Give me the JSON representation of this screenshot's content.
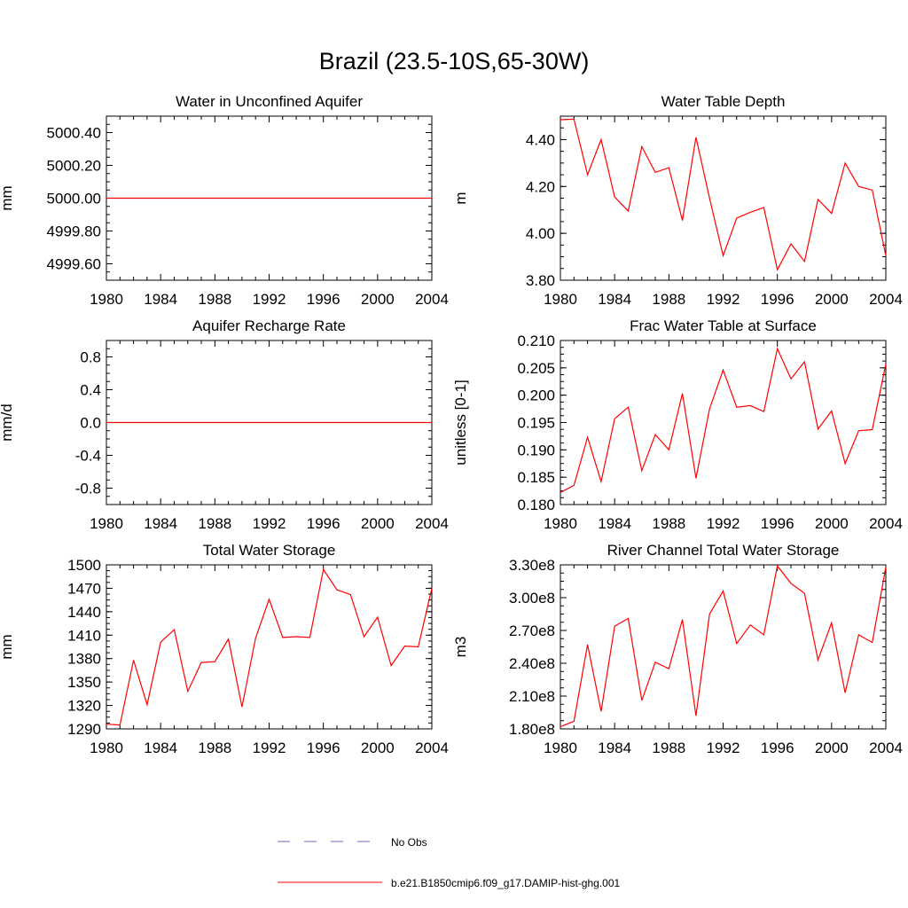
{
  "figure": {
    "title": "Brazil (23.5-10S,65-30W)",
    "line_color": "#ff0000",
    "obs_color": "#6a6ab0"
  },
  "legend": {
    "placement": "bottom-center",
    "items": [
      {
        "label": "No Obs",
        "style": "dashed",
        "color": "#6a6ab0"
      },
      {
        "label": "b.e21.B1850cmip6.f09_g17.DAMIP-hist-ghg.001",
        "style": "solid",
        "color": "#ff0000"
      }
    ]
  },
  "chart_data": [
    {
      "type": "line",
      "title": "Water in Unconfined Aquifer",
      "ylabel": "mm",
      "xlabel": "",
      "xlim": [
        1980,
        2004
      ],
      "ylim": [
        4999.5,
        5000.5
      ],
      "xticks": [
        1980,
        1984,
        1988,
        1992,
        1996,
        2000,
        2004
      ],
      "yticks": [
        4999.6,
        4999.8,
        5000.0,
        5000.2,
        5000.4
      ],
      "ytick_labels": [
        "4999.60",
        "4999.80",
        "5000.00",
        "5000.20",
        "5000.40"
      ],
      "x": [
        1980,
        1981,
        1982,
        1983,
        1984,
        1985,
        1986,
        1987,
        1988,
        1989,
        1990,
        1991,
        1992,
        1993,
        1994,
        1995,
        1996,
        1997,
        1998,
        1999,
        2000,
        2001,
        2002,
        2003,
        2004
      ],
      "series": [
        {
          "values": [
            5000,
            5000,
            5000,
            5000,
            5000,
            5000,
            5000,
            5000,
            5000,
            5000,
            5000,
            5000,
            5000,
            5000,
            5000,
            5000,
            5000,
            5000,
            5000,
            5000,
            5000,
            5000,
            5000,
            5000,
            5000
          ]
        }
      ]
    },
    {
      "type": "line",
      "title": "Water Table Depth",
      "ylabel": "m",
      "xlabel": "",
      "xlim": [
        1980,
        2004
      ],
      "ylim": [
        3.8,
        4.5
      ],
      "xticks": [
        1980,
        1984,
        1988,
        1992,
        1996,
        2000,
        2004
      ],
      "yticks": [
        3.8,
        4.0,
        4.2,
        4.4
      ],
      "ytick_labels": [
        "3.80",
        "4.00",
        "4.20",
        "4.40"
      ],
      "x": [
        1980,
        1981,
        1982,
        1983,
        1984,
        1985,
        1986,
        1987,
        1988,
        1989,
        1990,
        1991,
        1992,
        1993,
        1994,
        1995,
        1996,
        1997,
        1998,
        1999,
        2000,
        2001,
        2002,
        2003,
        2004
      ],
      "series": [
        {
          "values": [
            4.485,
            4.487,
            4.25,
            4.4,
            4.155,
            4.095,
            4.37,
            4.26,
            4.28,
            4.055,
            4.41,
            4.15,
            3.905,
            4.065,
            4.09,
            4.11,
            3.845,
            3.955,
            3.88,
            4.145,
            4.085,
            4.3,
            4.2,
            4.185,
            3.905
          ]
        }
      ]
    },
    {
      "type": "line",
      "title": "Aquifer Recharge Rate",
      "ylabel": "mm/d",
      "xlabel": "",
      "xlim": [
        1980,
        2004
      ],
      "ylim": [
        -1,
        1
      ],
      "xticks": [
        1980,
        1984,
        1988,
        1992,
        1996,
        2000,
        2004
      ],
      "yticks": [
        -0.8,
        -0.4,
        0.0,
        0.4,
        0.8
      ],
      "ytick_labels": [
        "-0.8",
        "-0.4",
        "0.0",
        "0.4",
        "0.8"
      ],
      "x": [
        1980,
        1981,
        1982,
        1983,
        1984,
        1985,
        1986,
        1987,
        1988,
        1989,
        1990,
        1991,
        1992,
        1993,
        1994,
        1995,
        1996,
        1997,
        1998,
        1999,
        2000,
        2001,
        2002,
        2003,
        2004
      ],
      "series": [
        {
          "values": [
            0,
            0,
            0,
            0,
            0,
            0,
            0,
            0,
            0,
            0,
            0,
            0,
            0,
            0,
            0,
            0,
            0,
            0,
            0,
            0,
            0,
            0,
            0,
            0,
            0
          ]
        }
      ]
    },
    {
      "type": "line",
      "title": "Frac Water Table at Surface",
      "ylabel": "unitless [0-1]",
      "xlabel": "",
      "xlim": [
        1980,
        2004
      ],
      "ylim": [
        0.18,
        0.21
      ],
      "xticks": [
        1980,
        1984,
        1988,
        1992,
        1996,
        2000,
        2004
      ],
      "yticks": [
        0.18,
        0.185,
        0.19,
        0.195,
        0.2,
        0.205,
        0.21
      ],
      "ytick_labels": [
        "0.180",
        "0.185",
        "0.190",
        "0.195",
        "0.200",
        "0.205",
        "0.210"
      ],
      "x": [
        1980,
        1981,
        1982,
        1983,
        1984,
        1985,
        1986,
        1987,
        1988,
        1989,
        1990,
        1991,
        1992,
        1993,
        1994,
        1995,
        1996,
        1997,
        1998,
        1999,
        2000,
        2001,
        2002,
        2003,
        2004
      ],
      "series": [
        {
          "values": [
            0.1822,
            0.1835,
            0.1923,
            0.1842,
            0.1957,
            0.1978,
            0.1862,
            0.1928,
            0.19,
            0.2003,
            0.1848,
            0.1975,
            0.2046,
            0.1978,
            0.1981,
            0.197,
            0.2085,
            0.203,
            0.2061,
            0.1938,
            0.1971,
            0.1875,
            0.1935,
            0.1937,
            0.2057
          ]
        }
      ]
    },
    {
      "type": "line",
      "title": "Total Water Storage",
      "ylabel": "mm",
      "xlabel": "",
      "xlim": [
        1980,
        2004
      ],
      "ylim": [
        1290,
        1500
      ],
      "xticks": [
        1980,
        1984,
        1988,
        1992,
        1996,
        2000,
        2004
      ],
      "yticks": [
        1290,
        1320,
        1350,
        1380,
        1410,
        1440,
        1470,
        1500
      ],
      "ytick_labels": [
        "1290",
        "1320",
        "1350",
        "1380",
        "1410",
        "1440",
        "1470",
        "1500"
      ],
      "x": [
        1980,
        1981,
        1982,
        1983,
        1984,
        1985,
        1986,
        1987,
        1988,
        1989,
        1990,
        1991,
        1992,
        1993,
        1994,
        1995,
        1996,
        1997,
        1998,
        1999,
        2000,
        2001,
        2002,
        2003,
        2004
      ],
      "series": [
        {
          "values": [
            1296,
            1295,
            1378,
            1321,
            1401,
            1417,
            1338,
            1375,
            1376,
            1405,
            1318,
            1406,
            1456,
            1407,
            1408,
            1407,
            1494,
            1468,
            1462,
            1408,
            1433,
            1371,
            1396,
            1395,
            1470
          ]
        }
      ]
    },
    {
      "type": "line",
      "title": "River Channel Total Water Storage",
      "ylabel": "m3",
      "xlabel": "",
      "xlim": [
        1980,
        2004
      ],
      "ylim": [
        180000000.0,
        330000000.0
      ],
      "xticks": [
        1980,
        1984,
        1988,
        1992,
        1996,
        2000,
        2004
      ],
      "yticks": [
        180000000.0,
        210000000.0,
        240000000.0,
        270000000.0,
        300000000.0,
        330000000.0
      ],
      "ytick_labels": [
        "1.80e8",
        "2.10e8",
        "2.40e8",
        "2.70e8",
        "3.00e8",
        "3.30e8"
      ],
      "x": [
        1980,
        1981,
        1982,
        1983,
        1984,
        1985,
        1986,
        1987,
        1988,
        1989,
        1990,
        1991,
        1992,
        1993,
        1994,
        1995,
        1996,
        1997,
        1998,
        1999,
        2000,
        2001,
        2002,
        2003,
        2004
      ],
      "series": [
        {
          "values": [
            182000000.0,
            187000000.0,
            257000000.0,
            196000000.0,
            274000000.0,
            281000000.0,
            206000000.0,
            241000000.0,
            235000000.0,
            280000000.0,
            192000000.0,
            285000000.0,
            306000000.0,
            258000000.0,
            275000000.0,
            266000000.0,
            329000000.0,
            313000000.0,
            304000000.0,
            243000000.0,
            277000000.0,
            213000000.0,
            266000000.0,
            259000000.0,
            328000000.0
          ]
        }
      ]
    }
  ]
}
